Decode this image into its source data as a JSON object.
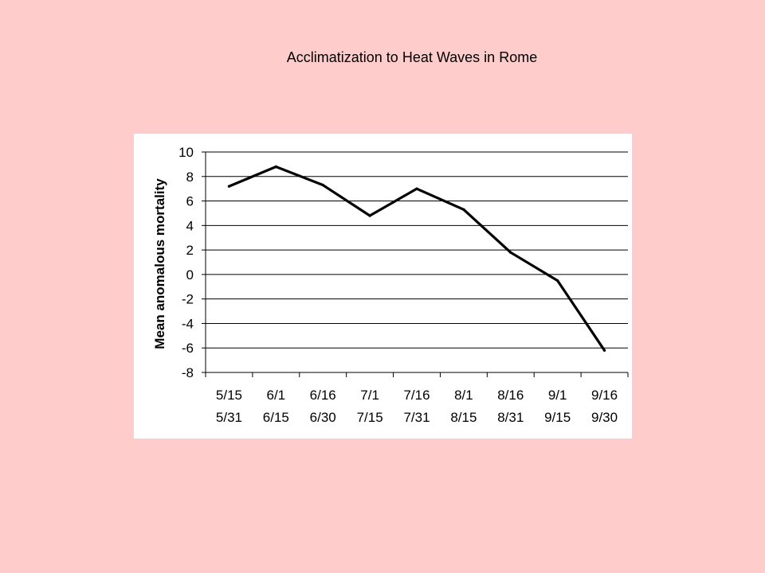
{
  "slide": {
    "title": "Acclimatization to Heat Waves in Rome"
  },
  "colors": {
    "background": "#ffcccc",
    "panel": "#ffffff",
    "line": "#000000"
  },
  "chart_data": {
    "type": "line",
    "title": "",
    "xlabel": "",
    "ylabel": "Mean anomalous mortality",
    "ylim": [
      -8,
      10
    ],
    "ytick_step": 2,
    "grid": true,
    "legend": "none",
    "categories": [
      {
        "line1": "5/15",
        "line2": "5/31"
      },
      {
        "line1": "6/1",
        "line2": "6/15"
      },
      {
        "line1": "6/16",
        "line2": "6/30"
      },
      {
        "line1": "7/1",
        "line2": "7/15"
      },
      {
        "line1": "7/16",
        "line2": "7/31"
      },
      {
        "line1": "8/1",
        "line2": "8/15"
      },
      {
        "line1": "8/16",
        "line2": "8/31"
      },
      {
        "line1": "9/1",
        "line2": "9/15"
      },
      {
        "line1": "9/16",
        "line2": "9/30"
      }
    ],
    "values": [
      7.2,
      8.8,
      7.3,
      4.8,
      7.0,
      5.3,
      1.8,
      -0.5,
      -6.2
    ]
  }
}
